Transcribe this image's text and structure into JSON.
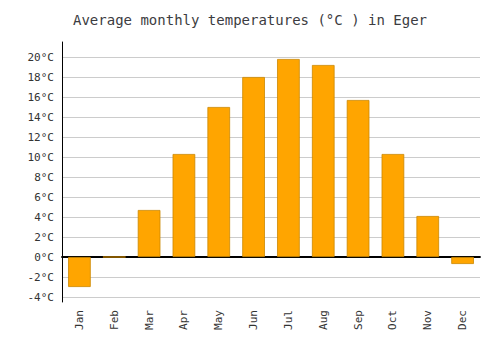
{
  "chart_data": {
    "type": "bar",
    "title": "Average monthly temperatures (°C ) in Eger",
    "categories": [
      "Jan",
      "Feb",
      "Mar",
      "Apr",
      "May",
      "Jun",
      "Jul",
      "Aug",
      "Sep",
      "Oct",
      "Nov",
      "Dec"
    ],
    "values": [
      -3.0,
      0.0,
      4.7,
      10.3,
      15.0,
      18.0,
      19.8,
      19.2,
      15.7,
      10.3,
      4.1,
      -0.7
    ],
    "color": "#FFA500",
    "ylim": [
      -4.5,
      21.5
    ],
    "yticks": [
      {
        "value": -4,
        "label": "-4°C"
      },
      {
        "value": -2,
        "label": "-2°C"
      },
      {
        "value": 0,
        "label": "0°C"
      },
      {
        "value": 2,
        "label": "2°C"
      },
      {
        "value": 4,
        "label": "4°C"
      },
      {
        "value": 6,
        "label": "6°C"
      },
      {
        "value": 8,
        "label": "8°C"
      },
      {
        "value": 10,
        "label": "10°C"
      },
      {
        "value": 12,
        "label": "12°C"
      },
      {
        "value": 14,
        "label": "14°C"
      },
      {
        "value": 16,
        "label": "16°C"
      },
      {
        "value": 18,
        "label": "18°C"
      },
      {
        "value": 20,
        "label": "20°C"
      }
    ],
    "grid": true
  }
}
